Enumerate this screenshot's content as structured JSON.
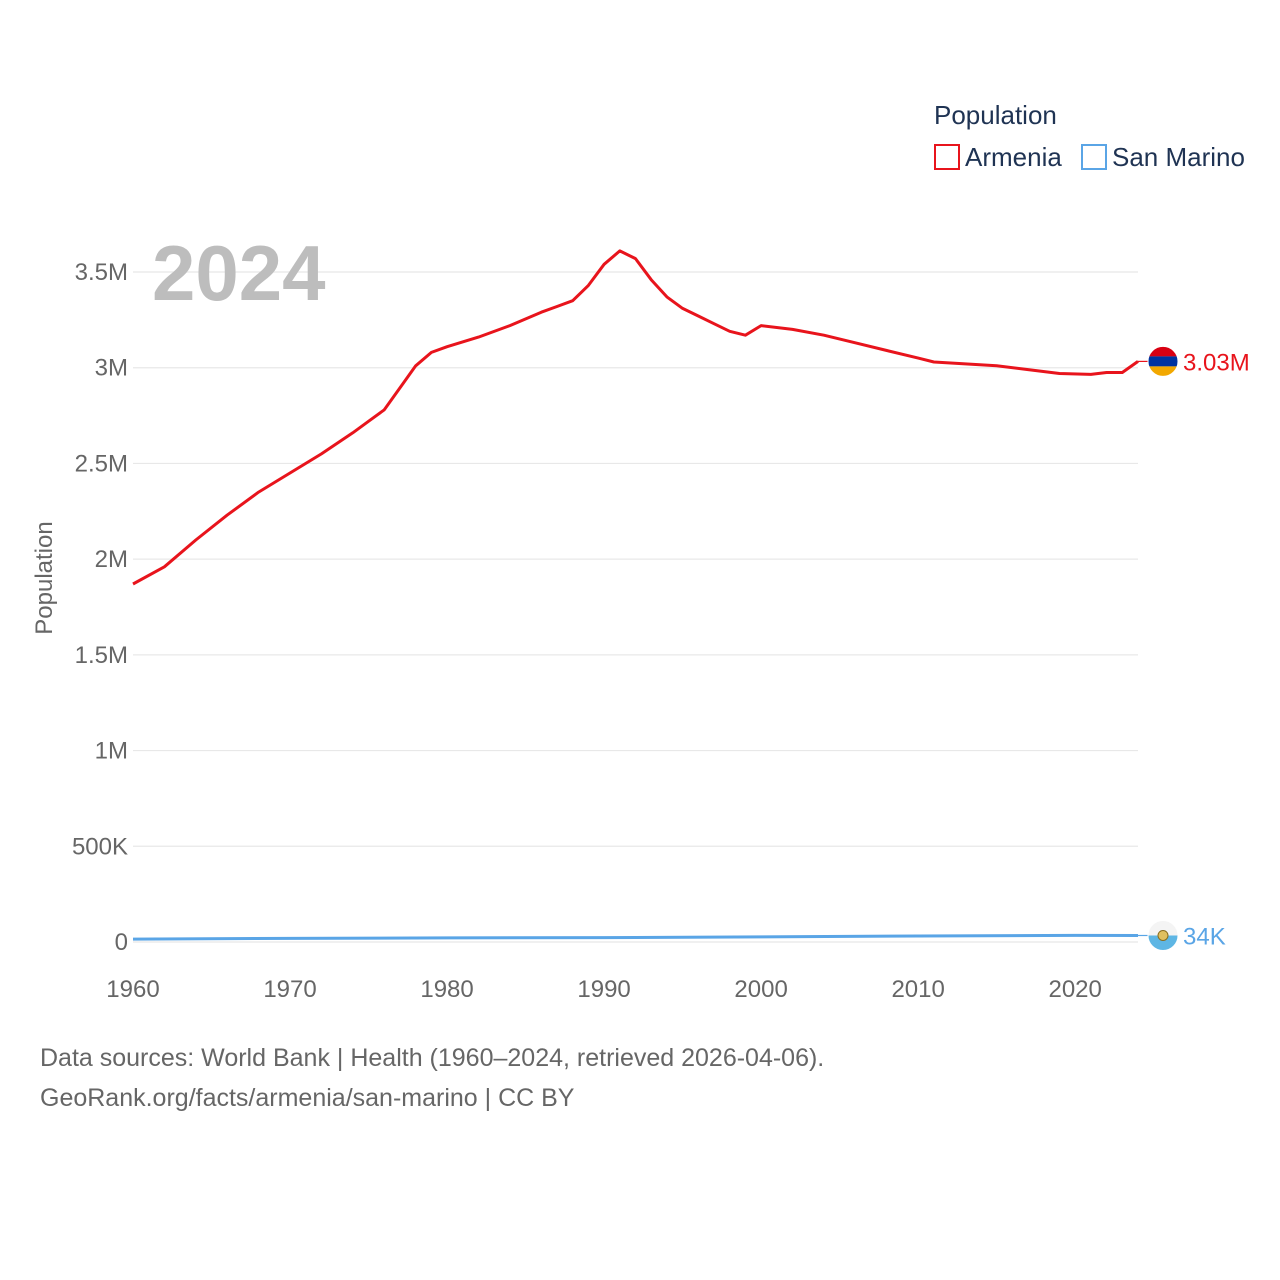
{
  "legend": {
    "title": "Population",
    "items": [
      "Armenia",
      "San Marino"
    ]
  },
  "current_year": "2024",
  "footer": {
    "line1": "Data sources: World Bank | Health (1960–2024, retrieved 2026-04-06).",
    "line2": "GeoRank.org/facts/armenia/san-marino | CC BY"
  },
  "colors": {
    "armenia": "#e8141c",
    "san_marino": "#5aa5e6",
    "grid": "#e8e8e8",
    "axis_text": "#666666"
  },
  "chart_data": {
    "type": "line",
    "ylabel": "Population",
    "xlabel": "",
    "xlim": [
      1960,
      2024
    ],
    "ylim": [
      0,
      3500000
    ],
    "xticks": [
      1960,
      1970,
      1980,
      1990,
      2000,
      2010,
      2020
    ],
    "yticks": [
      {
        "value": 0,
        "label": "0"
      },
      {
        "value": 500000,
        "label": "500K"
      },
      {
        "value": 1000000,
        "label": "1M"
      },
      {
        "value": 1500000,
        "label": "1.5M"
      },
      {
        "value": 2000000,
        "label": "2M"
      },
      {
        "value": 2500000,
        "label": "2.5M"
      },
      {
        "value": 3000000,
        "label": "3M"
      },
      {
        "value": 3500000,
        "label": "3.5M"
      }
    ],
    "series": [
      {
        "name": "Armenia",
        "color": "#e8141c",
        "end_label": "3.03M",
        "x": [
          1960,
          1962,
          1964,
          1966,
          1968,
          1970,
          1972,
          1974,
          1975,
          1976,
          1978,
          1979,
          1980,
          1982,
          1984,
          1986,
          1987,
          1988,
          1989,
          1990,
          1991,
          1992,
          1993,
          1994,
          1995,
          1996,
          1997,
          1998,
          1999,
          2000,
          2002,
          2004,
          2006,
          2008,
          2010,
          2011,
          2013,
          2015,
          2017,
          2019,
          2021,
          2022,
          2023,
          2024
        ],
        "values": [
          1870000,
          1960000,
          2100000,
          2230000,
          2350000,
          2450000,
          2550000,
          2660000,
          2720000,
          2780000,
          3010000,
          3080000,
          3110000,
          3160000,
          3220000,
          3290000,
          3320000,
          3350000,
          3430000,
          3540000,
          3610000,
          3570000,
          3460000,
          3370000,
          3310000,
          3270000,
          3230000,
          3190000,
          3170000,
          3220000,
          3200000,
          3170000,
          3130000,
          3090000,
          3050000,
          3030000,
          3020000,
          3010000,
          2990000,
          2970000,
          2965000,
          2975000,
          2975000,
          3033000
        ]
      },
      {
        "name": "San Marino",
        "color": "#5aa5e6",
        "end_label": "34K",
        "x": [
          1960,
          1970,
          1980,
          1990,
          2000,
          2010,
          2020,
          2024
        ],
        "values": [
          15000,
          18800,
          21300,
          23100,
          26800,
          31200,
          34400,
          34000
        ]
      }
    ]
  }
}
